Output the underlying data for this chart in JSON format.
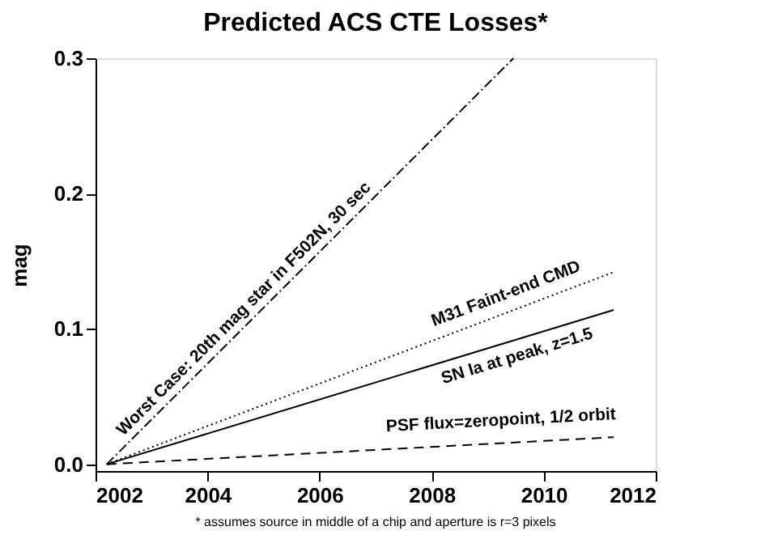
{
  "chart_data": {
    "type": "line",
    "title": "Predicted ACS CTE Losses*",
    "ylabel": "mag",
    "xlim": [
      2002,
      2012
    ],
    "xticks": [
      2002,
      2004,
      2006,
      2008,
      2010,
      2012
    ],
    "ylim": [
      -0.005,
      0.3
    ],
    "yticks": [
      {
        "value": 0,
        "label": "0.0"
      },
      {
        "value": 0.1,
        "label": "0.1"
      },
      {
        "value": 0.2,
        "label": "0.2"
      },
      {
        "value": 0.3,
        "label": "0.3"
      }
    ],
    "grid": false,
    "marker": "none",
    "series": [
      {
        "name": "Worst Case: 20th mag star in F502N, 30 sec",
        "color": "#000000",
        "line_style": "dashdot",
        "x": [
          2002.2,
          2009.46
        ],
        "values": [
          0,
          0.3
        ]
      },
      {
        "name": "M31 Faint-end CMD",
        "color": "#000000",
        "line_style": "dotted",
        "x": [
          2002.2,
          2011.25
        ],
        "values": [
          0,
          0.142
        ]
      },
      {
        "name": "SN Ia at peak, z=1.5",
        "color": "#000000",
        "line_style": "solid",
        "x": [
          2002.2,
          2011.25
        ],
        "values": [
          0,
          0.114
        ]
      },
      {
        "name": "PSF flux=zeropoint, 1/2 orbit",
        "color": "#000000",
        "line_style": "dashed",
        "x": [
          2002.2,
          2011.25
        ],
        "values": [
          0,
          0.02
        ]
      }
    ],
    "annotations": [
      "* assumes source in middle of a chip and aperture is r=3 pixels"
    ]
  }
}
